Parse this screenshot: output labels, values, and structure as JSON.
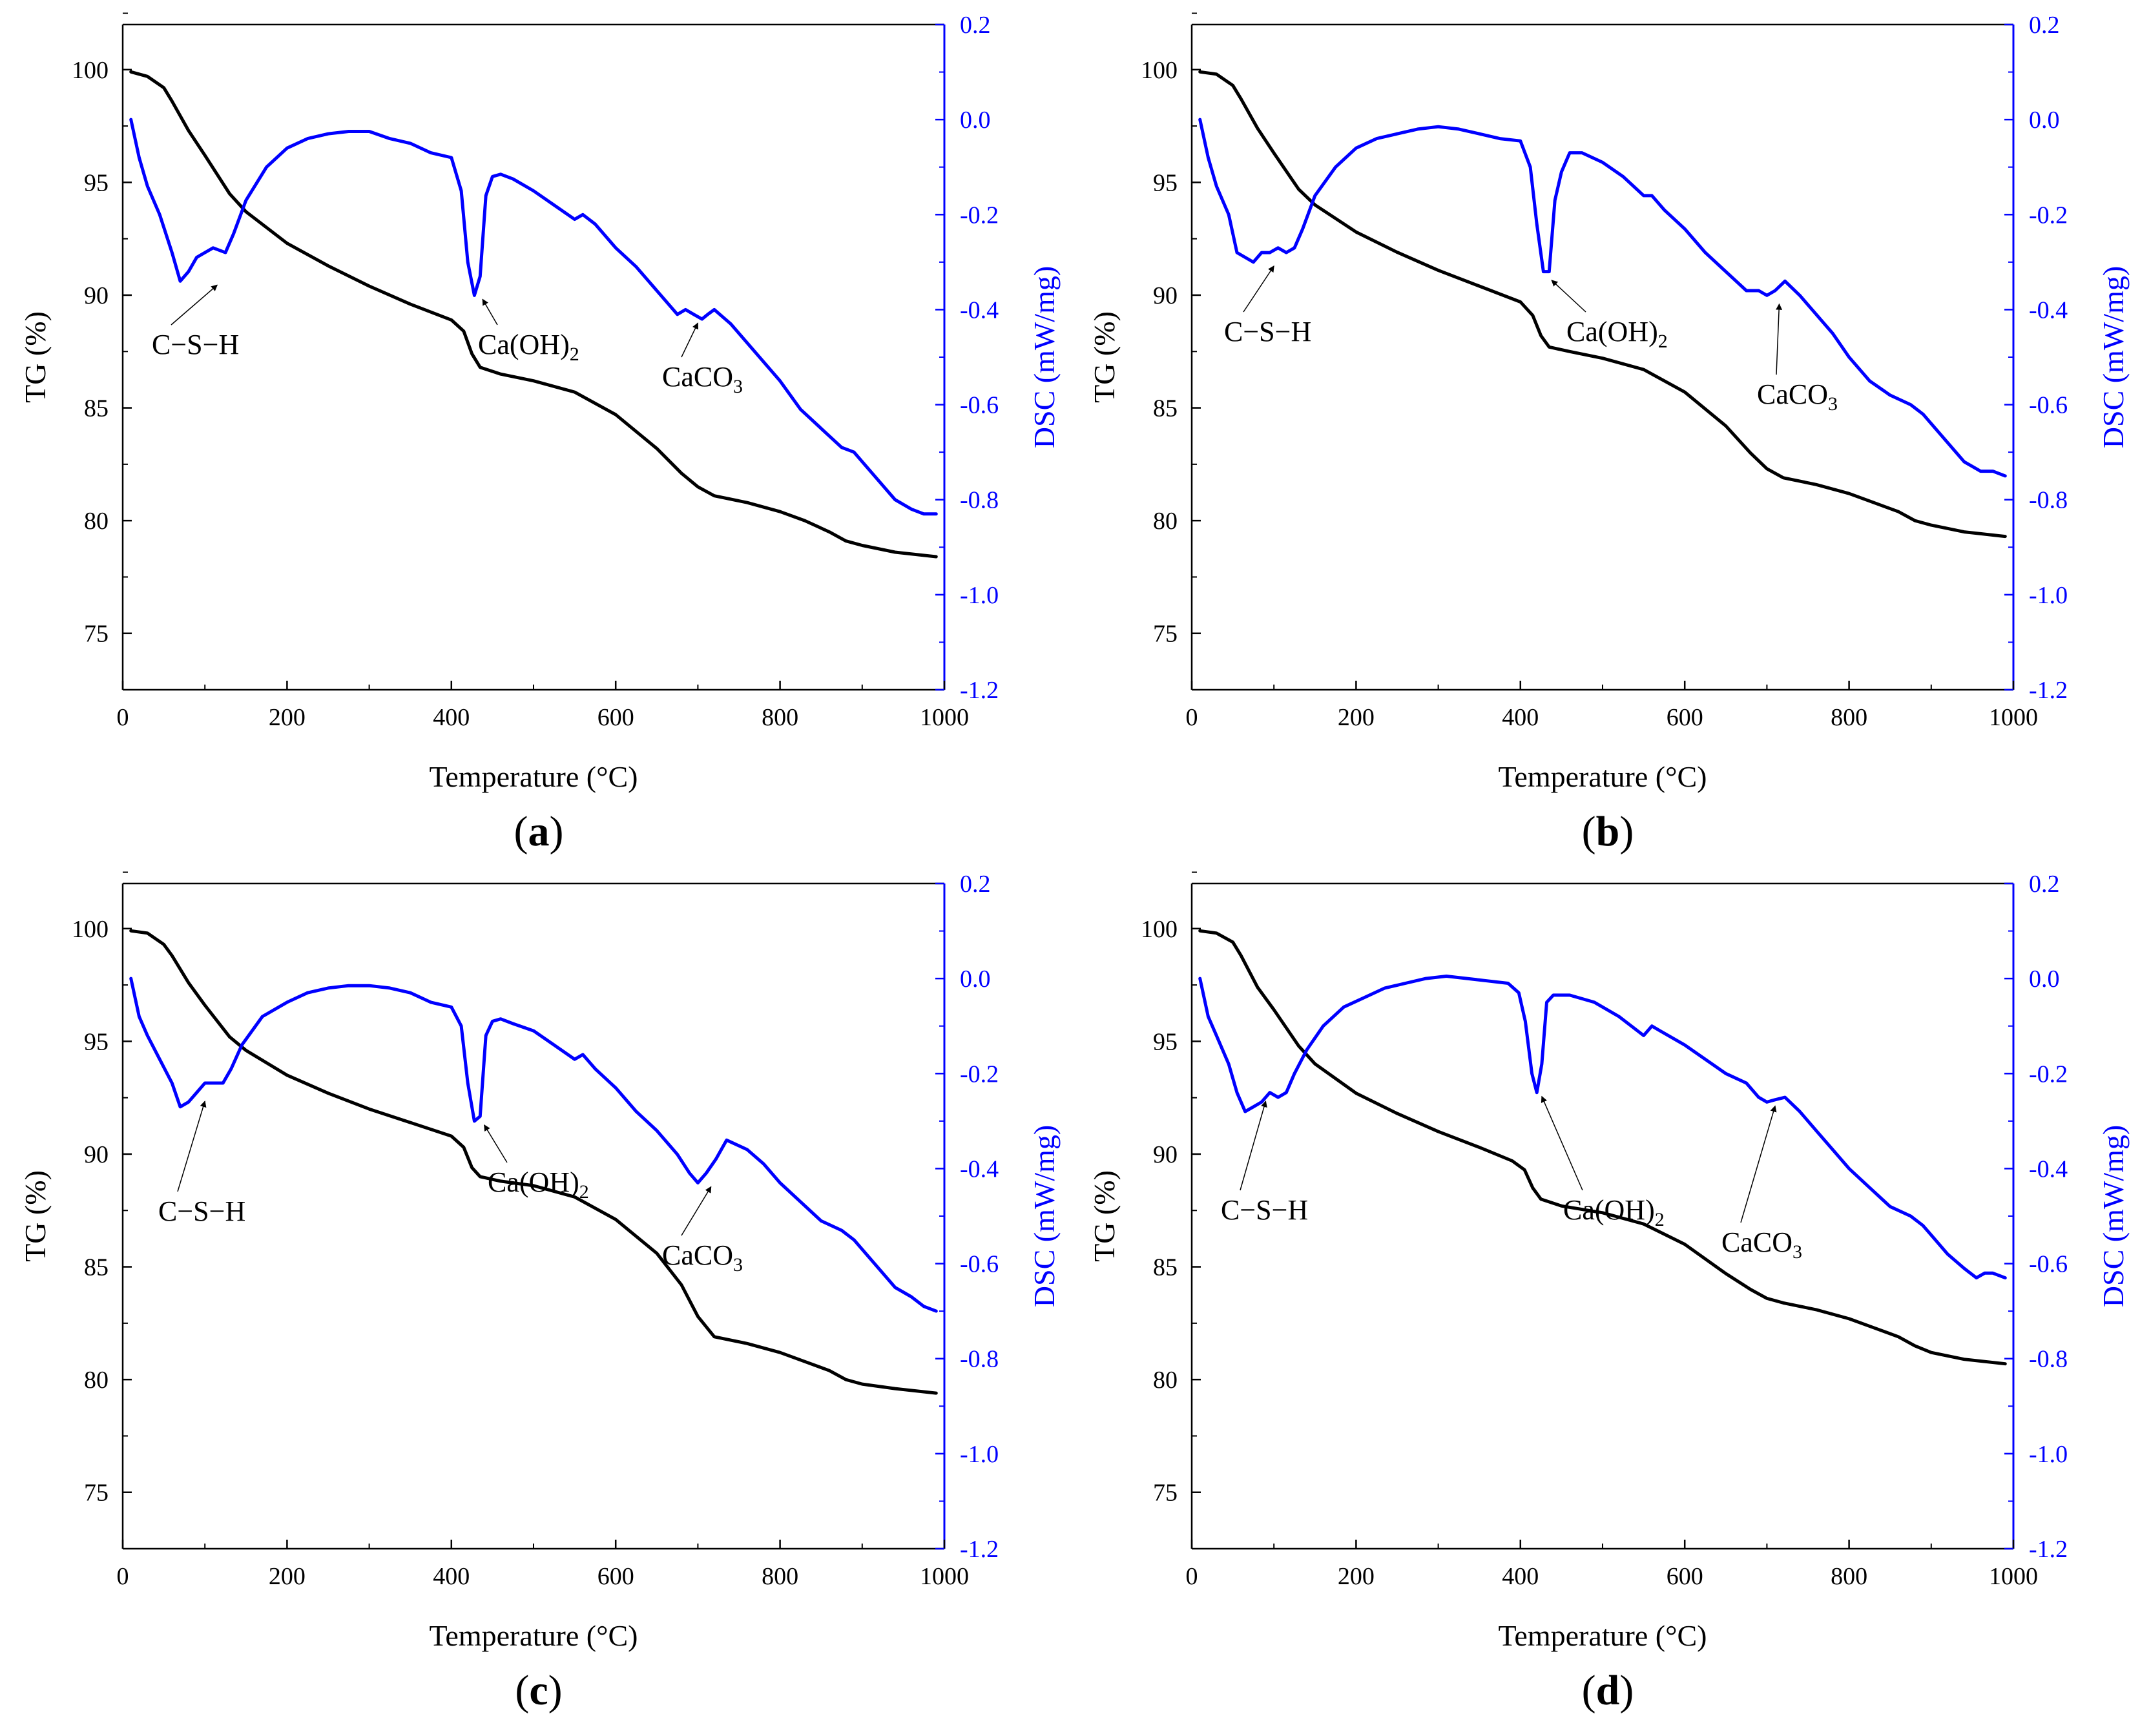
{
  "colors": {
    "tg": "#000000",
    "dsc": "#0000ff",
    "axis": "#000000"
  },
  "chart_data": [
    {
      "type": "line",
      "panel_label": "a",
      "xlabel": "Temperature (°C)",
      "ylabel_left": "TG (%)",
      "ylabel_right": "DSC (mW/mg)",
      "xlim": [
        0,
        1000
      ],
      "ylim_left": [
        72.5,
        102
      ],
      "ylim_right": [
        -1.2,
        0.2
      ],
      "xticks": [
        "0",
        "200",
        "400",
        "600",
        "800",
        "1000"
      ],
      "yticks_left": [
        "75",
        "80",
        "85",
        "90",
        "95",
        "100"
      ],
      "yticks_right": [
        "-1.2",
        "-1.0",
        "-0.8",
        "-0.6",
        "-0.4",
        "-0.2",
        "0.0",
        "0.2"
      ],
      "series": [
        {
          "name": "TG",
          "axis": "left",
          "x": [
            10,
            30,
            50,
            60,
            80,
            100,
            130,
            150,
            200,
            250,
            300,
            350,
            400,
            415,
            425,
            435,
            460,
            500,
            550,
            600,
            650,
            680,
            700,
            720,
            760,
            800,
            830,
            860,
            880,
            900,
            940,
            990
          ],
          "y": [
            99.9,
            99.7,
            99.2,
            98.6,
            97.3,
            96.2,
            94.5,
            93.7,
            92.3,
            91.3,
            90.4,
            89.6,
            88.9,
            88.4,
            87.4,
            86.8,
            86.5,
            86.2,
            85.7,
            84.7,
            83.2,
            82.1,
            81.5,
            81.1,
            80.8,
            80.4,
            80.0,
            79.5,
            79.1,
            78.9,
            78.6,
            78.4
          ]
        },
        {
          "name": "DSC",
          "axis": "right",
          "x": [
            10,
            20,
            30,
            45,
            60,
            70,
            80,
            90,
            100,
            110,
            125,
            135,
            150,
            175,
            200,
            225,
            250,
            275,
            300,
            325,
            350,
            375,
            400,
            412,
            420,
            428,
            435,
            442,
            450,
            460,
            475,
            500,
            525,
            550,
            560,
            575,
            600,
            625,
            650,
            675,
            685,
            695,
            705,
            712,
            720,
            740,
            760,
            780,
            800,
            825,
            850,
            875,
            890,
            900,
            920,
            940,
            960,
            975,
            990
          ],
          "y": [
            0.0,
            -0.08,
            -0.14,
            -0.2,
            -0.28,
            -0.34,
            -0.32,
            -0.29,
            -0.28,
            -0.27,
            -0.28,
            -0.24,
            -0.17,
            -0.1,
            -0.06,
            -0.04,
            -0.03,
            -0.025,
            -0.025,
            -0.04,
            -0.05,
            -0.07,
            -0.08,
            -0.15,
            -0.3,
            -0.37,
            -0.33,
            -0.16,
            -0.12,
            -0.115,
            -0.125,
            -0.15,
            -0.18,
            -0.21,
            -0.2,
            -0.22,
            -0.27,
            -0.31,
            -0.36,
            -0.41,
            -0.4,
            -0.41,
            -0.42,
            -0.41,
            -0.4,
            -0.43,
            -0.47,
            -0.51,
            -0.55,
            -0.61,
            -0.65,
            -0.69,
            -0.7,
            -0.72,
            -0.76,
            -0.8,
            -0.82,
            -0.83,
            -0.83
          ]
        }
      ],
      "annotations": [
        {
          "text": "C−S−H"
        },
        {
          "text": "Ca(OH)",
          "sub": "2"
        },
        {
          "text": "CaCO",
          "sub": "3"
        }
      ]
    },
    {
      "type": "line",
      "panel_label": "b",
      "xlabel": "Temperature (°C)",
      "ylabel_left": "TG (%)",
      "ylabel_right": "DSC (mW/mg)",
      "xlim": [
        0,
        1000
      ],
      "ylim_left": [
        72.5,
        102
      ],
      "ylim_right": [
        -1.2,
        0.2
      ],
      "xticks": [
        "0",
        "200",
        "400",
        "600",
        "800",
        "1000"
      ],
      "yticks_left": [
        "75",
        "80",
        "85",
        "90",
        "95",
        "100"
      ],
      "yticks_right": [
        "-1.2",
        "-1.0",
        "-0.8",
        "-0.6",
        "-0.4",
        "-0.2",
        "0.0",
        "0.2"
      ],
      "series": [
        {
          "name": "TG",
          "axis": "left",
          "x": [
            10,
            30,
            50,
            60,
            80,
            100,
            130,
            150,
            200,
            250,
            300,
            350,
            400,
            415,
            425,
            435,
            460,
            500,
            550,
            600,
            650,
            680,
            700,
            720,
            760,
            800,
            830,
            860,
            880,
            900,
            940,
            990
          ],
          "y": [
            99.9,
            99.8,
            99.3,
            98.7,
            97.4,
            96.3,
            94.7,
            94.0,
            92.8,
            91.9,
            91.1,
            90.4,
            89.7,
            89.1,
            88.2,
            87.7,
            87.5,
            87.2,
            86.7,
            85.7,
            84.2,
            83.0,
            82.3,
            81.9,
            81.6,
            81.2,
            80.8,
            80.4,
            80.0,
            79.8,
            79.5,
            79.3
          ]
        },
        {
          "name": "DSC",
          "axis": "right",
          "x": [
            10,
            20,
            30,
            45,
            55,
            65,
            75,
            85,
            95,
            105,
            115,
            125,
            135,
            150,
            175,
            200,
            225,
            250,
            275,
            300,
            325,
            350,
            375,
            400,
            412,
            420,
            428,
            435,
            442,
            450,
            460,
            475,
            500,
            525,
            550,
            560,
            575,
            600,
            625,
            650,
            675,
            690,
            700,
            710,
            722,
            740,
            760,
            780,
            800,
            825,
            850,
            875,
            890,
            900,
            920,
            940,
            960,
            975,
            990
          ],
          "y": [
            0.0,
            -0.08,
            -0.14,
            -0.2,
            -0.28,
            -0.29,
            -0.3,
            -0.28,
            -0.28,
            -0.27,
            -0.28,
            -0.27,
            -0.23,
            -0.16,
            -0.1,
            -0.06,
            -0.04,
            -0.03,
            -0.02,
            -0.015,
            -0.02,
            -0.03,
            -0.04,
            -0.045,
            -0.1,
            -0.22,
            -0.32,
            -0.32,
            -0.17,
            -0.11,
            -0.07,
            -0.07,
            -0.09,
            -0.12,
            -0.16,
            -0.16,
            -0.19,
            -0.23,
            -0.28,
            -0.32,
            -0.36,
            -0.36,
            -0.37,
            -0.36,
            -0.34,
            -0.37,
            -0.41,
            -0.45,
            -0.5,
            -0.55,
            -0.58,
            -0.6,
            -0.62,
            -0.64,
            -0.68,
            -0.72,
            -0.74,
            -0.74,
            -0.75
          ]
        }
      ],
      "annotations": [
        {
          "text": "C−S−H"
        },
        {
          "text": "Ca(OH)",
          "sub": "2"
        },
        {
          "text": "CaCO",
          "sub": "3"
        }
      ]
    },
    {
      "type": "line",
      "panel_label": "c",
      "xlabel": "Temperature (°C)",
      "ylabel_left": "TG (%)",
      "ylabel_right": "DSC (mW/mg)",
      "xlim": [
        0,
        1000
      ],
      "ylim_left": [
        72.5,
        102
      ],
      "ylim_right": [
        -1.2,
        0.2
      ],
      "xticks": [
        "0",
        "200",
        "400",
        "600",
        "800",
        "1000"
      ],
      "yticks_left": [
        "75",
        "80",
        "85",
        "90",
        "95",
        "100"
      ],
      "yticks_right": [
        "-1.2",
        "-1.0",
        "-0.8",
        "-0.6",
        "-0.4",
        "-0.2",
        "0.0",
        "0.2"
      ],
      "series": [
        {
          "name": "TG",
          "axis": "left",
          "x": [
            10,
            30,
            50,
            60,
            80,
            100,
            130,
            150,
            200,
            250,
            300,
            350,
            400,
            415,
            425,
            435,
            460,
            500,
            550,
            600,
            650,
            680,
            700,
            720,
            760,
            800,
            830,
            860,
            880,
            900,
            940,
            990
          ],
          "y": [
            99.9,
            99.8,
            99.3,
            98.8,
            97.6,
            96.6,
            95.2,
            94.6,
            93.5,
            92.7,
            92.0,
            91.4,
            90.8,
            90.3,
            89.4,
            89.0,
            88.8,
            88.6,
            88.1,
            87.1,
            85.6,
            84.2,
            82.8,
            81.9,
            81.6,
            81.2,
            80.8,
            80.4,
            80.0,
            79.8,
            79.6,
            79.4
          ]
        },
        {
          "name": "DSC",
          "axis": "right",
          "x": [
            10,
            20,
            30,
            45,
            60,
            70,
            80,
            90,
            100,
            110,
            122,
            132,
            145,
            170,
            200,
            225,
            250,
            275,
            300,
            325,
            350,
            375,
            400,
            412,
            420,
            428,
            435,
            442,
            450,
            460,
            475,
            500,
            525,
            550,
            560,
            575,
            600,
            625,
            650,
            675,
            690,
            700,
            710,
            722,
            735,
            760,
            780,
            800,
            825,
            850,
            875,
            890,
            900,
            920,
            940,
            960,
            975,
            990
          ],
          "y": [
            0.0,
            -0.08,
            -0.12,
            -0.17,
            -0.22,
            -0.27,
            -0.26,
            -0.24,
            -0.22,
            -0.22,
            -0.22,
            -0.19,
            -0.14,
            -0.08,
            -0.05,
            -0.03,
            -0.02,
            -0.015,
            -0.015,
            -0.02,
            -0.03,
            -0.05,
            -0.06,
            -0.1,
            -0.22,
            -0.3,
            -0.29,
            -0.12,
            -0.09,
            -0.085,
            -0.095,
            -0.11,
            -0.14,
            -0.17,
            -0.16,
            -0.19,
            -0.23,
            -0.28,
            -0.32,
            -0.37,
            -0.41,
            -0.43,
            -0.41,
            -0.38,
            -0.34,
            -0.36,
            -0.39,
            -0.43,
            -0.47,
            -0.51,
            -0.53,
            -0.55,
            -0.57,
            -0.61,
            -0.65,
            -0.67,
            -0.69,
            -0.7
          ]
        }
      ],
      "annotations": [
        {
          "text": "C−S−H"
        },
        {
          "text": "Ca(OH)",
          "sub": "2"
        },
        {
          "text": "CaCO",
          "sub": "3"
        }
      ]
    },
    {
      "type": "line",
      "panel_label": "d",
      "xlabel": "Temperature (°C)",
      "ylabel_left": "TG (%)",
      "ylabel_right": "DSC (mW/mg)",
      "xlim": [
        0,
        1000
      ],
      "ylim_left": [
        72.5,
        102
      ],
      "ylim_right": [
        -1.2,
        0.2
      ],
      "xticks": [
        "0",
        "200",
        "400",
        "600",
        "800",
        "1000"
      ],
      "yticks_left": [
        "75",
        "80",
        "85",
        "90",
        "95",
        "100"
      ],
      "yticks_right": [
        "-1.2",
        "-1.0",
        "-0.8",
        "-0.6",
        "-0.4",
        "-0.2",
        "0.0",
        "0.2"
      ],
      "series": [
        {
          "name": "TG",
          "axis": "left",
          "x": [
            10,
            30,
            50,
            60,
            80,
            100,
            130,
            150,
            200,
            250,
            300,
            350,
            390,
            405,
            415,
            425,
            450,
            500,
            550,
            600,
            650,
            680,
            700,
            720,
            760,
            800,
            830,
            860,
            880,
            900,
            940,
            990
          ],
          "y": [
            99.9,
            99.8,
            99.4,
            98.8,
            97.4,
            96.4,
            94.8,
            94.0,
            92.7,
            91.8,
            91.0,
            90.3,
            89.7,
            89.3,
            88.5,
            88.0,
            87.7,
            87.4,
            86.9,
            86.0,
            84.7,
            84.0,
            83.6,
            83.4,
            83.1,
            82.7,
            82.3,
            81.9,
            81.5,
            81.2,
            80.9,
            80.7
          ]
        },
        {
          "name": "DSC",
          "axis": "right",
          "x": [
            10,
            20,
            30,
            45,
            55,
            65,
            75,
            85,
            95,
            105,
            115,
            125,
            140,
            160,
            185,
            210,
            235,
            260,
            285,
            310,
            335,
            360,
            385,
            398,
            406,
            414,
            420,
            426,
            432,
            440,
            460,
            490,
            520,
            550,
            560,
            570,
            600,
            625,
            650,
            675,
            690,
            700,
            710,
            722,
            740,
            760,
            780,
            800,
            825,
            850,
            875,
            890,
            900,
            920,
            940,
            955,
            965,
            975,
            990
          ],
          "y": [
            0.0,
            -0.08,
            -0.12,
            -0.18,
            -0.24,
            -0.28,
            -0.27,
            -0.26,
            -0.24,
            -0.25,
            -0.24,
            -0.2,
            -0.15,
            -0.1,
            -0.06,
            -0.04,
            -0.02,
            -0.01,
            0.0,
            0.005,
            0.0,
            -0.005,
            -0.01,
            -0.03,
            -0.09,
            -0.2,
            -0.24,
            -0.18,
            -0.05,
            -0.035,
            -0.035,
            -0.05,
            -0.08,
            -0.12,
            -0.1,
            -0.11,
            -0.14,
            -0.17,
            -0.2,
            -0.22,
            -0.25,
            -0.26,
            -0.255,
            -0.25,
            -0.28,
            -0.32,
            -0.36,
            -0.4,
            -0.44,
            -0.48,
            -0.5,
            -0.52,
            -0.54,
            -0.58,
            -0.61,
            -0.63,
            -0.62,
            -0.62,
            -0.63
          ]
        }
      ],
      "annotations": [
        {
          "text": "C−S−H"
        },
        {
          "text": "Ca(OH)",
          "sub": "2"
        },
        {
          "text": "CaCO",
          "sub": "3"
        }
      ]
    }
  ]
}
